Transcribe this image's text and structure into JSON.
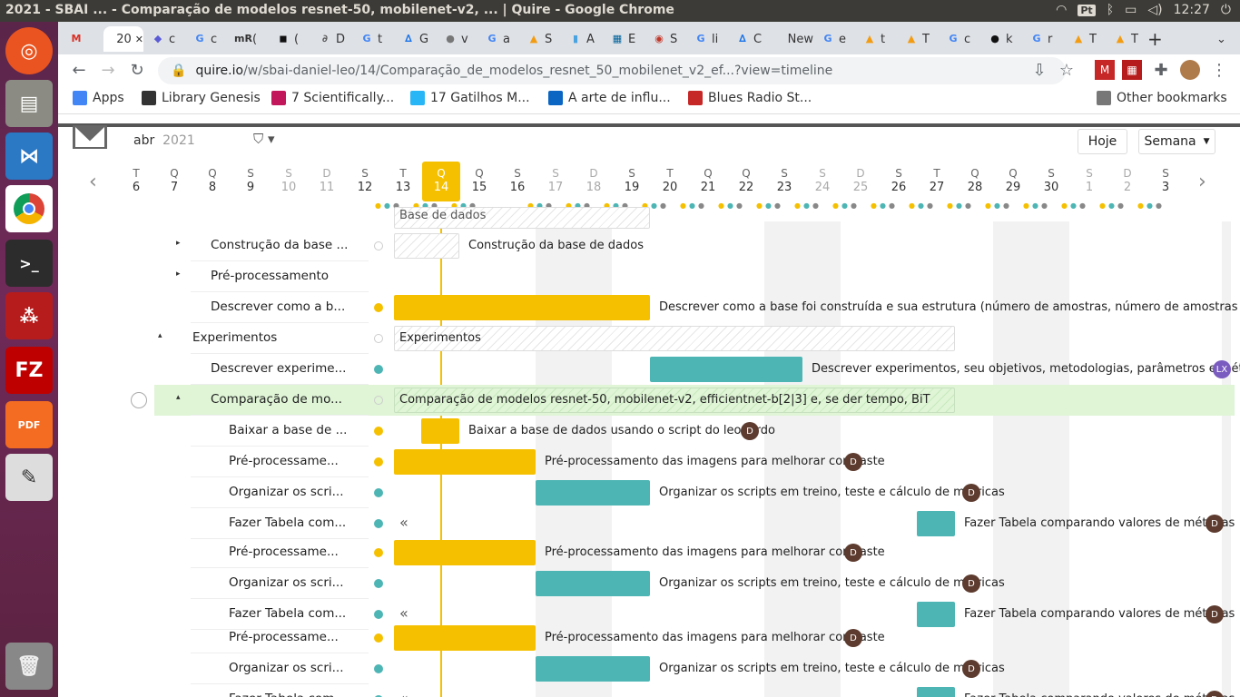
{
  "system": {
    "window_title": "2021 - SBAI ... - Comparação de modelos resnet-50, mobilenet-v2, ... | Quire - Google Chrome",
    "lang": "Pt",
    "clock": "12:27"
  },
  "tabs": [
    {
      "label": "",
      "fav": "M",
      "color": "#d93025"
    },
    {
      "label": "20",
      "fav": "",
      "color": "#fff",
      "active": true
    },
    {
      "label": "c",
      "fav": "◆",
      "color": "#5b5bd6"
    },
    {
      "label": "c",
      "fav": "G",
      "color": "#4285f4"
    },
    {
      "label": "(",
      "fav": "mR",
      "color": "#333"
    },
    {
      "label": "(",
      "fav": "◼",
      "color": "#111"
    },
    {
      "label": "D",
      "fav": "∂",
      "color": "#555"
    },
    {
      "label": "t",
      "fav": "G",
      "color": "#4285f4"
    },
    {
      "label": "G",
      "fav": "∆",
      "color": "#1a73e8"
    },
    {
      "label": "v",
      "fav": "●",
      "color": "#777"
    },
    {
      "label": "a",
      "fav": "G",
      "color": "#4285f4"
    },
    {
      "label": "S",
      "fav": "▲",
      "color": "#f39c12"
    },
    {
      "label": "A",
      "fav": "▮",
      "color": "#4aa3df"
    },
    {
      "label": "E",
      "fav": "▦",
      "color": "#00629b"
    },
    {
      "label": "S",
      "fav": "◉",
      "color": "#c0392b"
    },
    {
      "label": "li",
      "fav": "G",
      "color": "#4285f4"
    },
    {
      "label": "C",
      "fav": "∆",
      "color": "#1a73e8"
    },
    {
      "label": "New",
      "fav": "",
      "color": "#fff"
    },
    {
      "label": "e",
      "fav": "G",
      "color": "#4285f4"
    },
    {
      "label": "t",
      "fav": "▲",
      "color": "#f39c12"
    },
    {
      "label": "T",
      "fav": "▲",
      "color": "#f39c12"
    },
    {
      "label": "c",
      "fav": "G",
      "color": "#4285f4"
    },
    {
      "label": "k",
      "fav": "●",
      "color": "#111"
    },
    {
      "label": "r",
      "fav": "G",
      "color": "#4285f4"
    },
    {
      "label": "T",
      "fav": "▲",
      "color": "#f39c12"
    },
    {
      "label": "T",
      "fav": "▲",
      "color": "#f39c12"
    }
  ],
  "toolbar": {
    "url_host": "quire.io",
    "url_path": "/w/sbai-daniel-leo/14/Comparação_de_modelos_resnet_50_mobilenet_v2_ef...?view=timeline"
  },
  "bookmarks": {
    "items": [
      {
        "label": "Apps",
        "color": "#4285f4"
      },
      {
        "label": "Library Genesis",
        "color": "#333"
      },
      {
        "label": "7 Scientifically...",
        "color": "#c2185b"
      },
      {
        "label": "17 Gatilhos M...",
        "color": "#29b6f6"
      },
      {
        "label": "A arte de influ...",
        "color": "#0a66c2"
      },
      {
        "label": "Blues Radio St...",
        "color": "#c62828"
      }
    ],
    "other": "Other bookmarks"
  },
  "quire": {
    "month": "abr",
    "year": "2021",
    "today_button": "Hoje",
    "view_button": "Semana",
    "days": [
      {
        "l": "T",
        "n": "6"
      },
      {
        "l": "Q",
        "n": "7"
      },
      {
        "l": "Q",
        "n": "8"
      },
      {
        "l": "S",
        "n": "9"
      },
      {
        "l": "S",
        "n": "10",
        "w": true
      },
      {
        "l": "D",
        "n": "11",
        "w": true
      },
      {
        "l": "S",
        "n": "12"
      },
      {
        "l": "T",
        "n": "13"
      },
      {
        "l": "Q",
        "n": "14",
        "today": true
      },
      {
        "l": "Q",
        "n": "15"
      },
      {
        "l": "S",
        "n": "16"
      },
      {
        "l": "S",
        "n": "17",
        "w": true
      },
      {
        "l": "D",
        "n": "18",
        "w": true
      },
      {
        "l": "S",
        "n": "19"
      },
      {
        "l": "T",
        "n": "20"
      },
      {
        "l": "Q",
        "n": "21"
      },
      {
        "l": "Q",
        "n": "22"
      },
      {
        "l": "S",
        "n": "23"
      },
      {
        "l": "S",
        "n": "24",
        "w": true
      },
      {
        "l": "D",
        "n": "25",
        "w": true
      },
      {
        "l": "S",
        "n": "26"
      },
      {
        "l": "T",
        "n": "27"
      },
      {
        "l": "Q",
        "n": "28"
      },
      {
        "l": "Q",
        "n": "29"
      },
      {
        "l": "S",
        "n": "30"
      },
      {
        "l": "S",
        "n": "1",
        "w": true
      },
      {
        "l": "D",
        "n": "2",
        "w": true
      },
      {
        "l": "S",
        "n": "3"
      }
    ]
  },
  "tasks": {
    "partial_top": "Base de dados",
    "r1_name": "Construção da base ...",
    "r1_label": "Construção da base de dados",
    "r2_name": "Pré-processamento",
    "r3_name": "Descrever como a b...",
    "r3_label": "Descrever como a base foi construída e sua estrutura (número de amostras, número de amostras por classe, etc.)",
    "r4_name": "Experimentos",
    "r4_label": "Experimentos",
    "r5_name": "Descrever experime...",
    "r5_label": "Descrever experimentos, seu objetivos, metodologias, parâmetros e métricas",
    "r5_avatar": "LX",
    "r6_name": "Comparação de mo...",
    "r6_label": "Comparação de modelos resnet-50, mobilenet-v2, efficientnet-b[2|3] e, se der tempo, BiT",
    "r7_name": "Baixar a base de ...",
    "r7_label": "Baixar a base de dados usando o script do leonardo",
    "pre_name": "Pré-processame...",
    "pre_label": "Pré-processamento das imagens para melhorar contraste",
    "org_name": "Organizar os scri...",
    "org_label": "Organizar os scripts em treino, teste e cálculo de métricas",
    "tab_name": "Fazer Tabela com...",
    "tab_label": "Fazer Tabela comparando valores de métricas",
    "avatar_d": "D"
  }
}
